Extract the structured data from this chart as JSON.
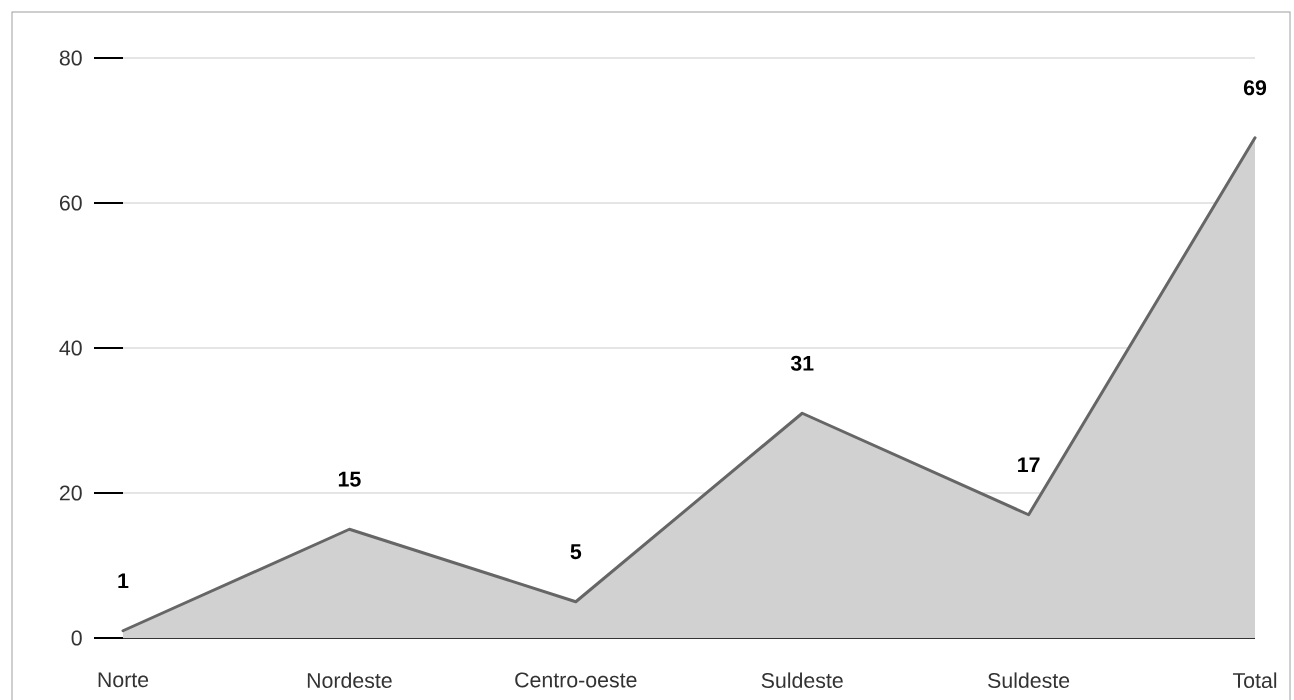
{
  "chart_data": {
    "type": "area",
    "categories": [
      "Norte",
      "Nordeste",
      "Centro-oeste",
      "Suldeste",
      "Suldeste",
      "Total"
    ],
    "values": [
      1,
      15,
      5,
      31,
      17,
      69
    ],
    "color": "#666666",
    "ylim": [
      0,
      80
    ],
    "yticks": [
      0,
      20,
      40,
      60,
      80
    ],
    "grid": "y",
    "data_labels": true
  }
}
